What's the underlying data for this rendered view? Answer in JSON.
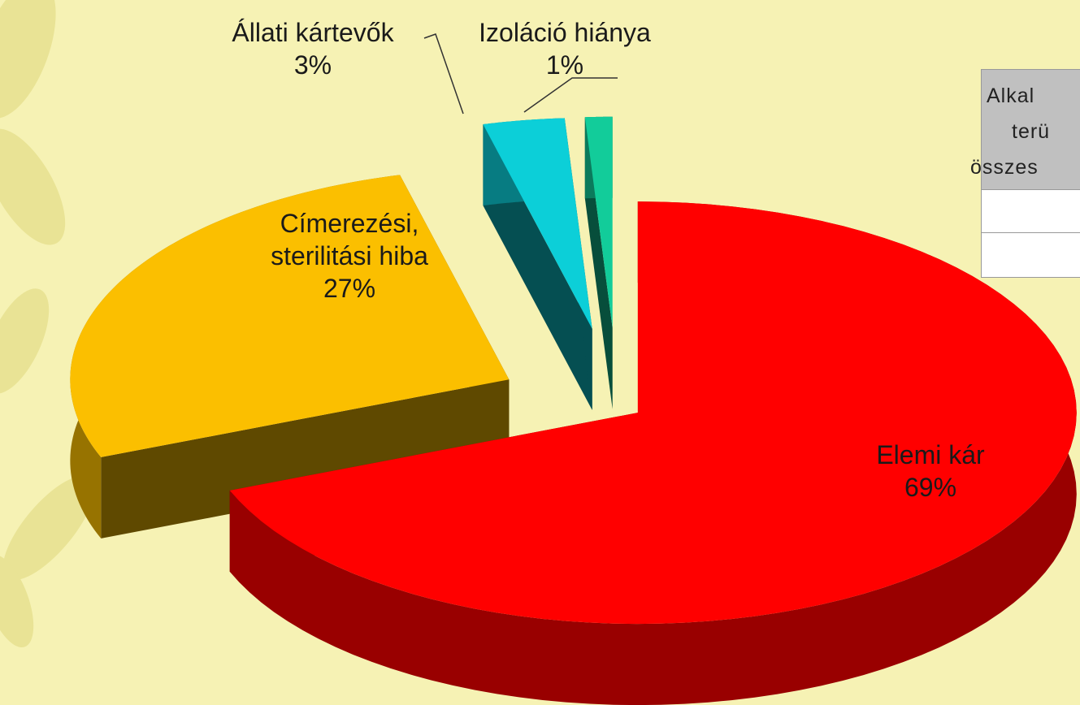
{
  "chart_data": {
    "type": "pie3d",
    "categories": [
      "Elemi kár",
      "Címerezési, sterilitási hiba",
      "Állati kártevők",
      "Izoláció hiánya"
    ],
    "values": [
      69,
      27,
      3,
      1
    ],
    "value_labels": [
      "69%",
      "27%",
      "3%",
      "1%"
    ],
    "colors": [
      "#ff0000",
      "#fbbf00",
      "#0ccfd8",
      "#12cc9a"
    ]
  },
  "table": {
    "header_lines": [
      "Alkal",
      "terü",
      "összes"
    ]
  }
}
